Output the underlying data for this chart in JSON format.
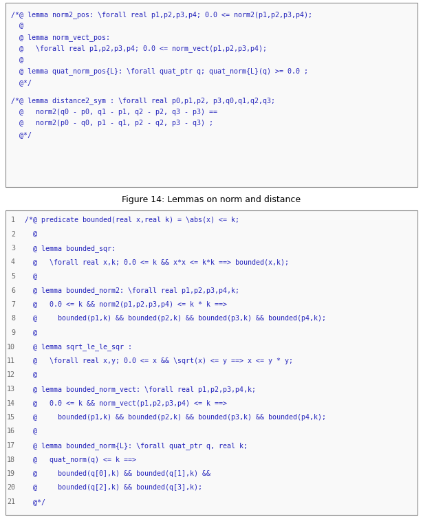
{
  "fig_width": 6.15,
  "fig_height": 7.52,
  "bg_color": "#ffffff",
  "text_color": "#2222bb",
  "box_edge_color": "#888888",
  "caption_color": "#000000",
  "font_size": 7.2,
  "line_number_color": "#666666",
  "caption_font_size": 9.0,
  "top_block1_lines": [
    "/*@ lemma norm2_pos: \\forall real p1,p2,p3,p4; 0.0 <= norm2(p1,p2,p3,p4);",
    "  @",
    "  @ lemma norm_vect_pos:",
    "  @   \\forall real p1,p2,p3,p4; 0.0 <= norm_vect(p1,p2,p3,p4);",
    "  @",
    "  @ lemma quat_norm_pos{L}: \\forall quat_ptr q; quat_norm{L}(q) >= 0.0 ;",
    "  @*/"
  ],
  "top_block2_lines": [
    "/*@ lemma distance2_sym : \\forall real p0,p1,p2, p3,q0,q1,q2,q3;",
    "  @   norm2(q0 - p0, q1 - p1, q2 - p2, q3 - p3) ==",
    "  @   norm2(p0 - q0, p1 - q1, p2 - q2, p3 - q3) ;",
    "  @*/"
  ],
  "caption14": "Figure 14: Lemmas on norm and distance",
  "bottom_box_lines": [
    "/*@ predicate bounded(real x,real k) = \\abs(x) <= k;",
    "  @",
    "  @ lemma bounded_sqr:",
    "  @   \\forall real x,k; 0.0 <= k && x*x <= k*k ==> bounded(x,k);",
    "  @",
    "  @ lemma bounded_norm2: \\forall real p1,p2,p3,p4,k;",
    "  @   0.0 <= k && norm2(p1,p2,p3,p4) <= k * k ==>",
    "  @     bounded(p1,k) && bounded(p2,k) && bounded(p3,k) && bounded(p4,k);",
    "  @",
    "  @ lemma sqrt_le_le_sqr :",
    "  @   \\forall real x,y; 0.0 <= x && \\sqrt(x) <= y ==> x <= y * y;",
    "  @",
    "  @ lemma bounded_norm_vect: \\forall real p1,p2,p3,p4,k;",
    "  @   0.0 <= k && norm_vect(p1,p2,p3,p4) <= k ==>",
    "  @     bounded(p1,k) && bounded(p2,k) && bounded(p3,k) && bounded(p4,k);",
    "  @",
    "  @ lemma bounded_norm{L}: \\forall quat_ptr q, real k;",
    "  @   quat_norm(q) <= k ==>",
    "  @     bounded(q[0],k) && bounded(q[1],k) &&",
    "  @     bounded(q[2],k) && bounded(q[3],k);",
    "  @*/"
  ],
  "bottom_line_numbers": [
    1,
    2,
    3,
    4,
    5,
    6,
    7,
    8,
    9,
    10,
    11,
    12,
    13,
    14,
    15,
    16,
    17,
    18,
    19,
    20,
    21
  ]
}
